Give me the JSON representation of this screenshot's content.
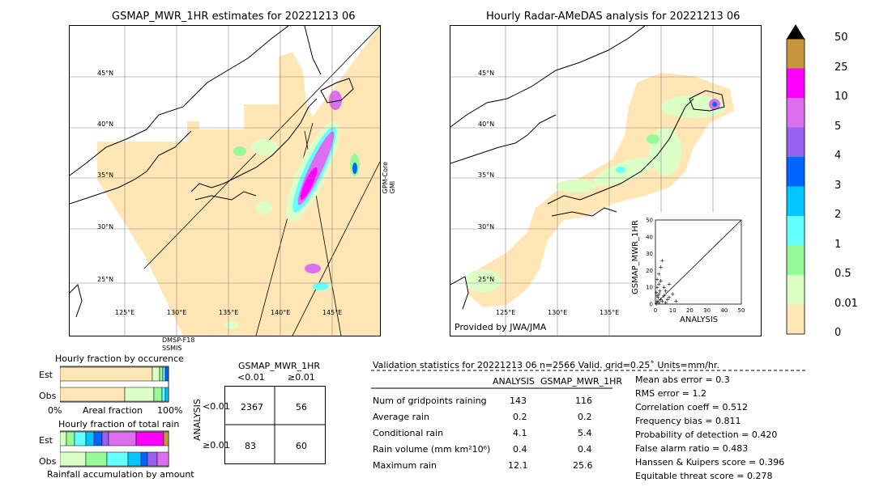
{
  "left_map": {
    "title": "GSMAP_MWR_1HR estimates for 20221213 06",
    "sensor_right": "GPM-Core\nGMI",
    "sensor_bottom_1": "DMSP-F18",
    "sensor_bottom_2": "SSMIS",
    "lat_labels": [
      "45°N",
      "40°N",
      "35°N",
      "30°N",
      "25°N"
    ],
    "lon_labels": [
      "125°E",
      "130°E",
      "135°E",
      "140°E",
      "145°E"
    ]
  },
  "right_map": {
    "title": "Hourly Radar-AMeDAS analysis for 20221213 06",
    "credit": "Provided by JWA/JMA",
    "lat_labels": [
      "45°N",
      "40°N",
      "35°N",
      "30°N",
      "25°N"
    ],
    "lon_labels": [
      "125°E",
      "130°E",
      "135°E"
    ]
  },
  "scatter": {
    "ylabel": "GSMAP_MWR_1HR",
    "xlabel": "ANALYSIS",
    "ticks": [
      "0",
      "10",
      "20",
      "30",
      "40",
      "50"
    ]
  },
  "colorbar": {
    "labels": [
      "50",
      "25",
      "10",
      "5",
      "4",
      "3",
      "2",
      "1",
      "0.5",
      "0.01",
      "0"
    ],
    "colors": [
      "#c8963c",
      "#ff00ff",
      "#dc6ef0",
      "#9664f0",
      "#0064ff",
      "#00c8ff",
      "#64ffff",
      "#96fa96",
      "#dcffc8",
      "#ffe6b4"
    ]
  },
  "fraction_occurrence": {
    "title": "Hourly fraction by occurence",
    "rows": [
      "Est",
      "Obs"
    ],
    "x_left": "0%",
    "x_mid": "Areal fraction",
    "x_right": "100%"
  },
  "fraction_total": {
    "title": "Hourly fraction of total rain",
    "rows": [
      "Est",
      "Obs"
    ],
    "footer": "Rainfall accumulation by amount"
  },
  "contingency": {
    "col_title": "GSMAP_MWR_1HR",
    "col_headers": [
      "<0.01",
      "≥0.01"
    ],
    "row_title": "ANALYSIS",
    "row_headers": [
      "<0.01",
      "≥0.01"
    ],
    "cells": [
      "2367",
      "56",
      "83",
      "60"
    ]
  },
  "validation": {
    "header": "Validation statistics for 20221213 06  n=2566 Valid. grid=0.25˚ Units=mm/hr.",
    "col1": "ANALYSIS",
    "col2": "GSMAP_MWR_1HR",
    "rows": [
      {
        "label": "Num of gridpoints raining",
        "a": "143",
        "b": "116"
      },
      {
        "label": "Average rain",
        "a": "0.2",
        "b": "0.2"
      },
      {
        "label": "Conditional rain",
        "a": "4.1",
        "b": "5.4"
      },
      {
        "label": "Rain volume (mm km²10⁶)",
        "a": "0.4",
        "b": "0.4"
      },
      {
        "label": "Maximum rain",
        "a": "12.1",
        "b": "25.6"
      }
    ],
    "scores": [
      "Mean abs error =    0.3",
      "RMS error =    1.2",
      "Correlation coeff =  0.512",
      "Frequency bias =  0.811",
      "Probability of detection =  0.420",
      "False alarm ratio =  0.483",
      "Hanssen & Kuipers score =  0.396",
      "Equitable threat score =  0.278"
    ]
  },
  "chart_data": {
    "type": "scatter",
    "title": "",
    "xlabel": "ANALYSIS",
    "ylabel": "GSMAP_MWR_1HR",
    "xlim": [
      0,
      50
    ],
    "ylim": [
      0,
      50
    ],
    "points": [
      [
        0.5,
        0.3
      ],
      [
        1,
        2
      ],
      [
        1.5,
        4
      ],
      [
        2,
        6
      ],
      [
        2.5,
        8
      ],
      [
        1,
        10
      ],
      [
        2,
        12
      ],
      [
        1,
        15
      ],
      [
        3,
        3
      ],
      [
        4,
        2
      ],
      [
        5,
        5
      ],
      [
        2,
        18
      ],
      [
        3,
        22
      ],
      [
        4,
        26
      ],
      [
        6,
        8
      ],
      [
        8,
        4
      ],
      [
        10,
        6
      ],
      [
        12,
        2
      ],
      [
        6,
        1
      ],
      [
        8,
        12
      ],
      [
        5,
        10
      ],
      [
        3,
        14
      ],
      [
        1,
        5
      ],
      [
        0.5,
        7
      ],
      [
        2,
        1
      ],
      [
        7,
        3
      ]
    ]
  }
}
